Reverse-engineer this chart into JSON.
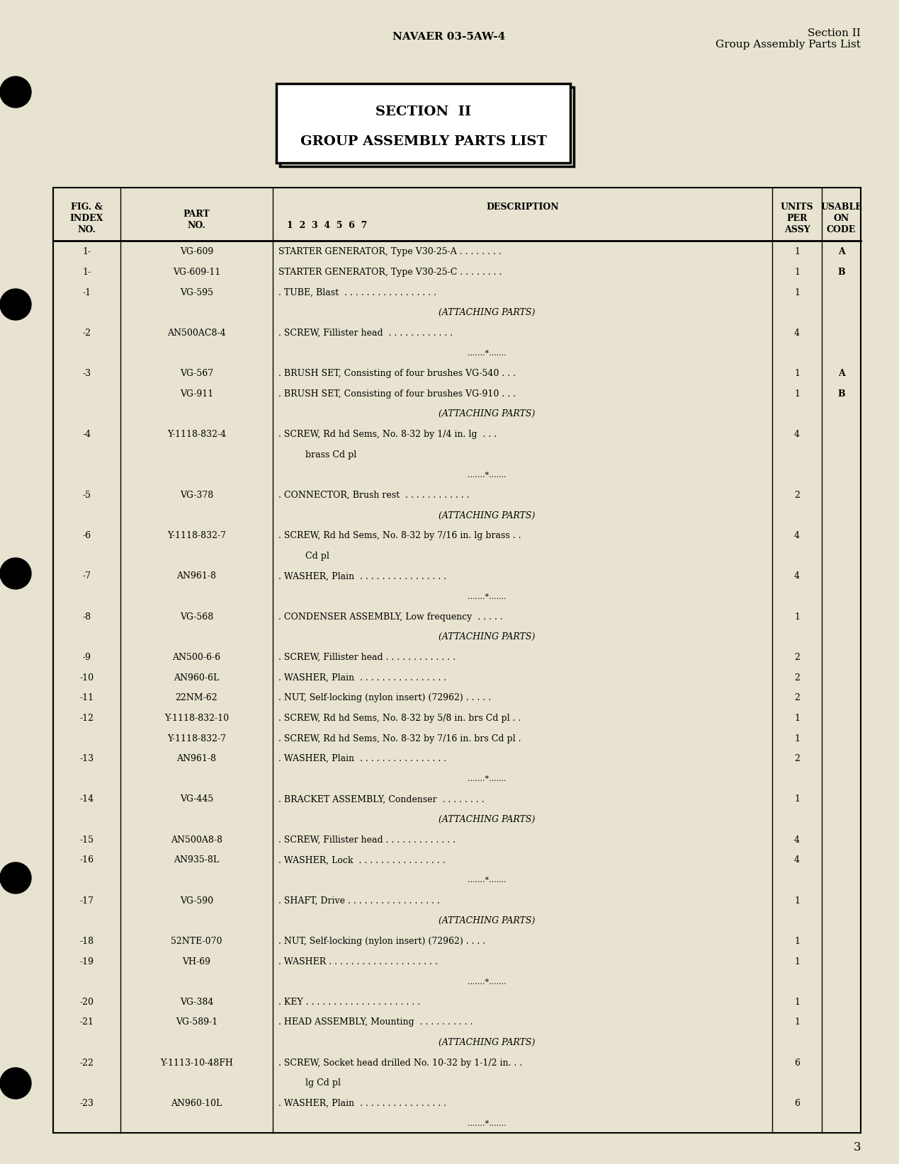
{
  "bg_color": "#e8e3d0",
  "page_header_left": "NAVAER 03-5AW-4",
  "page_header_right_line1": "Section II",
  "page_header_right_line2": "Group Assembly Parts List",
  "section_box_line1": "SECTION  II",
  "section_box_line2": "GROUP ASSEMBLY PARTS LIST",
  "page_number": "3",
  "table_rows": [
    {
      "fig": "1-",
      "part": "VG-609",
      "desc": "STARTER GENERATOR, Type V30-25-A . . . . . . . .",
      "units": "1",
      "code": "A",
      "type": "data"
    },
    {
      "fig": "1-",
      "part": "VG-609-11",
      "desc": "STARTER GENERATOR, Type V30-25-C . . . . . . . .",
      "units": "1",
      "code": "B",
      "type": "data"
    },
    {
      "fig": "-1",
      "part": "VG-595",
      "desc": ". TUBE, Blast  . . . . . . . . . . . . . . . . .",
      "units": "1",
      "code": "",
      "type": "data"
    },
    {
      "fig": "",
      "part": "",
      "desc": "(ATTACHING PARTS)",
      "units": "",
      "code": "",
      "type": "attaching"
    },
    {
      "fig": "-2",
      "part": "AN500AC8-4",
      "desc": ". SCREW, Fillister head  . . . . . . . . . . . .",
      "units": "4",
      "code": "",
      "type": "data"
    },
    {
      "fig": "",
      "part": "",
      "desc": ".......*.......",
      "units": "",
      "code": "",
      "type": "separator"
    },
    {
      "fig": "-3",
      "part": "VG-567",
      "desc": ". BRUSH SET, Consisting of four brushes VG-540 . . .",
      "units": "1",
      "code": "A",
      "type": "data"
    },
    {
      "fig": "",
      "part": "VG-911",
      "desc": ". BRUSH SET, Consisting of four brushes VG-910 . . .",
      "units": "1",
      "code": "B",
      "type": "data"
    },
    {
      "fig": "",
      "part": "",
      "desc": "(ATTACHING PARTS)",
      "units": "",
      "code": "",
      "type": "attaching"
    },
    {
      "fig": "-4",
      "part": "Y-1118-832-4",
      "desc": ". SCREW, Rd hd Sems, No. 8-32 by 1/4 in. lg  . . .",
      "units": "4",
      "code": "",
      "type": "data"
    },
    {
      "fig": "",
      "part": "",
      "desc": "    brass Cd pl",
      "units": "",
      "code": "",
      "type": "continuation"
    },
    {
      "fig": "",
      "part": "",
      "desc": ".......*.......",
      "units": "",
      "code": "",
      "type": "separator"
    },
    {
      "fig": "-5",
      "part": "VG-378",
      "desc": ". CONNECTOR, Brush rest  . . . . . . . . . . . .",
      "units": "2",
      "code": "",
      "type": "data"
    },
    {
      "fig": "",
      "part": "",
      "desc": "(ATTACHING PARTS)",
      "units": "",
      "code": "",
      "type": "attaching"
    },
    {
      "fig": "-6",
      "part": "Y-1118-832-7",
      "desc": ". SCREW, Rd hd Sems, No. 8-32 by 7/16 in. lg brass . .",
      "units": "4",
      "code": "",
      "type": "data"
    },
    {
      "fig": "",
      "part": "",
      "desc": "    Cd pl",
      "units": "",
      "code": "",
      "type": "continuation"
    },
    {
      "fig": "-7",
      "part": "AN961-8",
      "desc": ". WASHER, Plain  . . . . . . . . . . . . . . . .",
      "units": "4",
      "code": "",
      "type": "data"
    },
    {
      "fig": "",
      "part": "",
      "desc": ".......*.......",
      "units": "",
      "code": "",
      "type": "separator"
    },
    {
      "fig": "-8",
      "part": "VG-568",
      "desc": ". CONDENSER ASSEMBLY, Low frequency  . . . . .",
      "units": "1",
      "code": "",
      "type": "data"
    },
    {
      "fig": "",
      "part": "",
      "desc": "(ATTACHING PARTS)",
      "units": "",
      "code": "",
      "type": "attaching"
    },
    {
      "fig": "-9",
      "part": "AN500-6-6",
      "desc": ". SCREW, Fillister head . . . . . . . . . . . . .",
      "units": "2",
      "code": "",
      "type": "data"
    },
    {
      "fig": "-10",
      "part": "AN960-6L",
      "desc": ". WASHER, Plain  . . . . . . . . . . . . . . . .",
      "units": "2",
      "code": "",
      "type": "data"
    },
    {
      "fig": "-11",
      "part": "22NM-62",
      "desc": ". NUT, Self-locking (nylon insert) (72962) . . . . .",
      "units": "2",
      "code": "",
      "type": "data"
    },
    {
      "fig": "-12",
      "part": "Y-1118-832-10",
      "desc": ". SCREW, Rd hd Sems, No. 8-32 by 5/8 in. brs Cd pl . .",
      "units": "1",
      "code": "",
      "type": "data"
    },
    {
      "fig": "",
      "part": "Y-1118-832-7",
      "desc": ". SCREW, Rd hd Sems, No. 8-32 by 7/16 in. brs Cd pl .",
      "units": "1",
      "code": "",
      "type": "data"
    },
    {
      "fig": "-13",
      "part": "AN961-8",
      "desc": ". WASHER, Plain  . . . . . . . . . . . . . . . .",
      "units": "2",
      "code": "",
      "type": "data"
    },
    {
      "fig": "",
      "part": "",
      "desc": ".......*.......",
      "units": "",
      "code": "",
      "type": "separator"
    },
    {
      "fig": "-14",
      "part": "VG-445",
      "desc": ". BRACKET ASSEMBLY, Condenser  . . . . . . . .",
      "units": "1",
      "code": "",
      "type": "data"
    },
    {
      "fig": "",
      "part": "",
      "desc": "(ATTACHING PARTS)",
      "units": "",
      "code": "",
      "type": "attaching"
    },
    {
      "fig": "-15",
      "part": "AN500A8-8",
      "desc": ". SCREW, Fillister head . . . . . . . . . . . . .",
      "units": "4",
      "code": "",
      "type": "data"
    },
    {
      "fig": "-16",
      "part": "AN935-8L",
      "desc": ". WASHER, Lock  . . . . . . . . . . . . . . . .",
      "units": "4",
      "code": "",
      "type": "data"
    },
    {
      "fig": "",
      "part": "",
      "desc": ".......*.......",
      "units": "",
      "code": "",
      "type": "separator"
    },
    {
      "fig": "-17",
      "part": "VG-590",
      "desc": ". SHAFT, Drive . . . . . . . . . . . . . . . . .",
      "units": "1",
      "code": "",
      "type": "data"
    },
    {
      "fig": "",
      "part": "",
      "desc": "(ATTACHING PARTS)",
      "units": "",
      "code": "",
      "type": "attaching"
    },
    {
      "fig": "-18",
      "part": "52NTE-070",
      "desc": ". NUT, Self-locking (nylon insert) (72962) . . . .",
      "units": "1",
      "code": "",
      "type": "data"
    },
    {
      "fig": "-19",
      "part": "VH-69",
      "desc": ". WASHER . . . . . . . . . . . . . . . . . . . .",
      "units": "1",
      "code": "",
      "type": "data"
    },
    {
      "fig": "",
      "part": "",
      "desc": ".......*.......",
      "units": "",
      "code": "",
      "type": "separator"
    },
    {
      "fig": "-20",
      "part": "VG-384",
      "desc": ". KEY . . . . . . . . . . . . . . . . . . . . .",
      "units": "1",
      "code": "",
      "type": "data"
    },
    {
      "fig": "-21",
      "part": "VG-589-1",
      "desc": ". HEAD ASSEMBLY, Mounting  . . . . . . . . . .",
      "units": "1",
      "code": "",
      "type": "data"
    },
    {
      "fig": "",
      "part": "",
      "desc": "(ATTACHING PARTS)",
      "units": "",
      "code": "",
      "type": "attaching"
    },
    {
      "fig": "-22",
      "part": "Y-1113-10-48FH",
      "desc": ". SCREW, Socket head drilled No. 10-32 by 1-1/2 in. . .",
      "units": "6",
      "code": "",
      "type": "data"
    },
    {
      "fig": "",
      "part": "",
      "desc": "    lg Cd pl",
      "units": "",
      "code": "",
      "type": "continuation"
    },
    {
      "fig": "-23",
      "part": "AN960-10L",
      "desc": ". WASHER, Plain  . . . . . . . . . . . . . . . .",
      "units": "6",
      "code": "",
      "type": "data"
    },
    {
      "fig": "",
      "part": "",
      "desc": ".......*.......",
      "units": "",
      "code": "",
      "type": "separator"
    }
  ]
}
